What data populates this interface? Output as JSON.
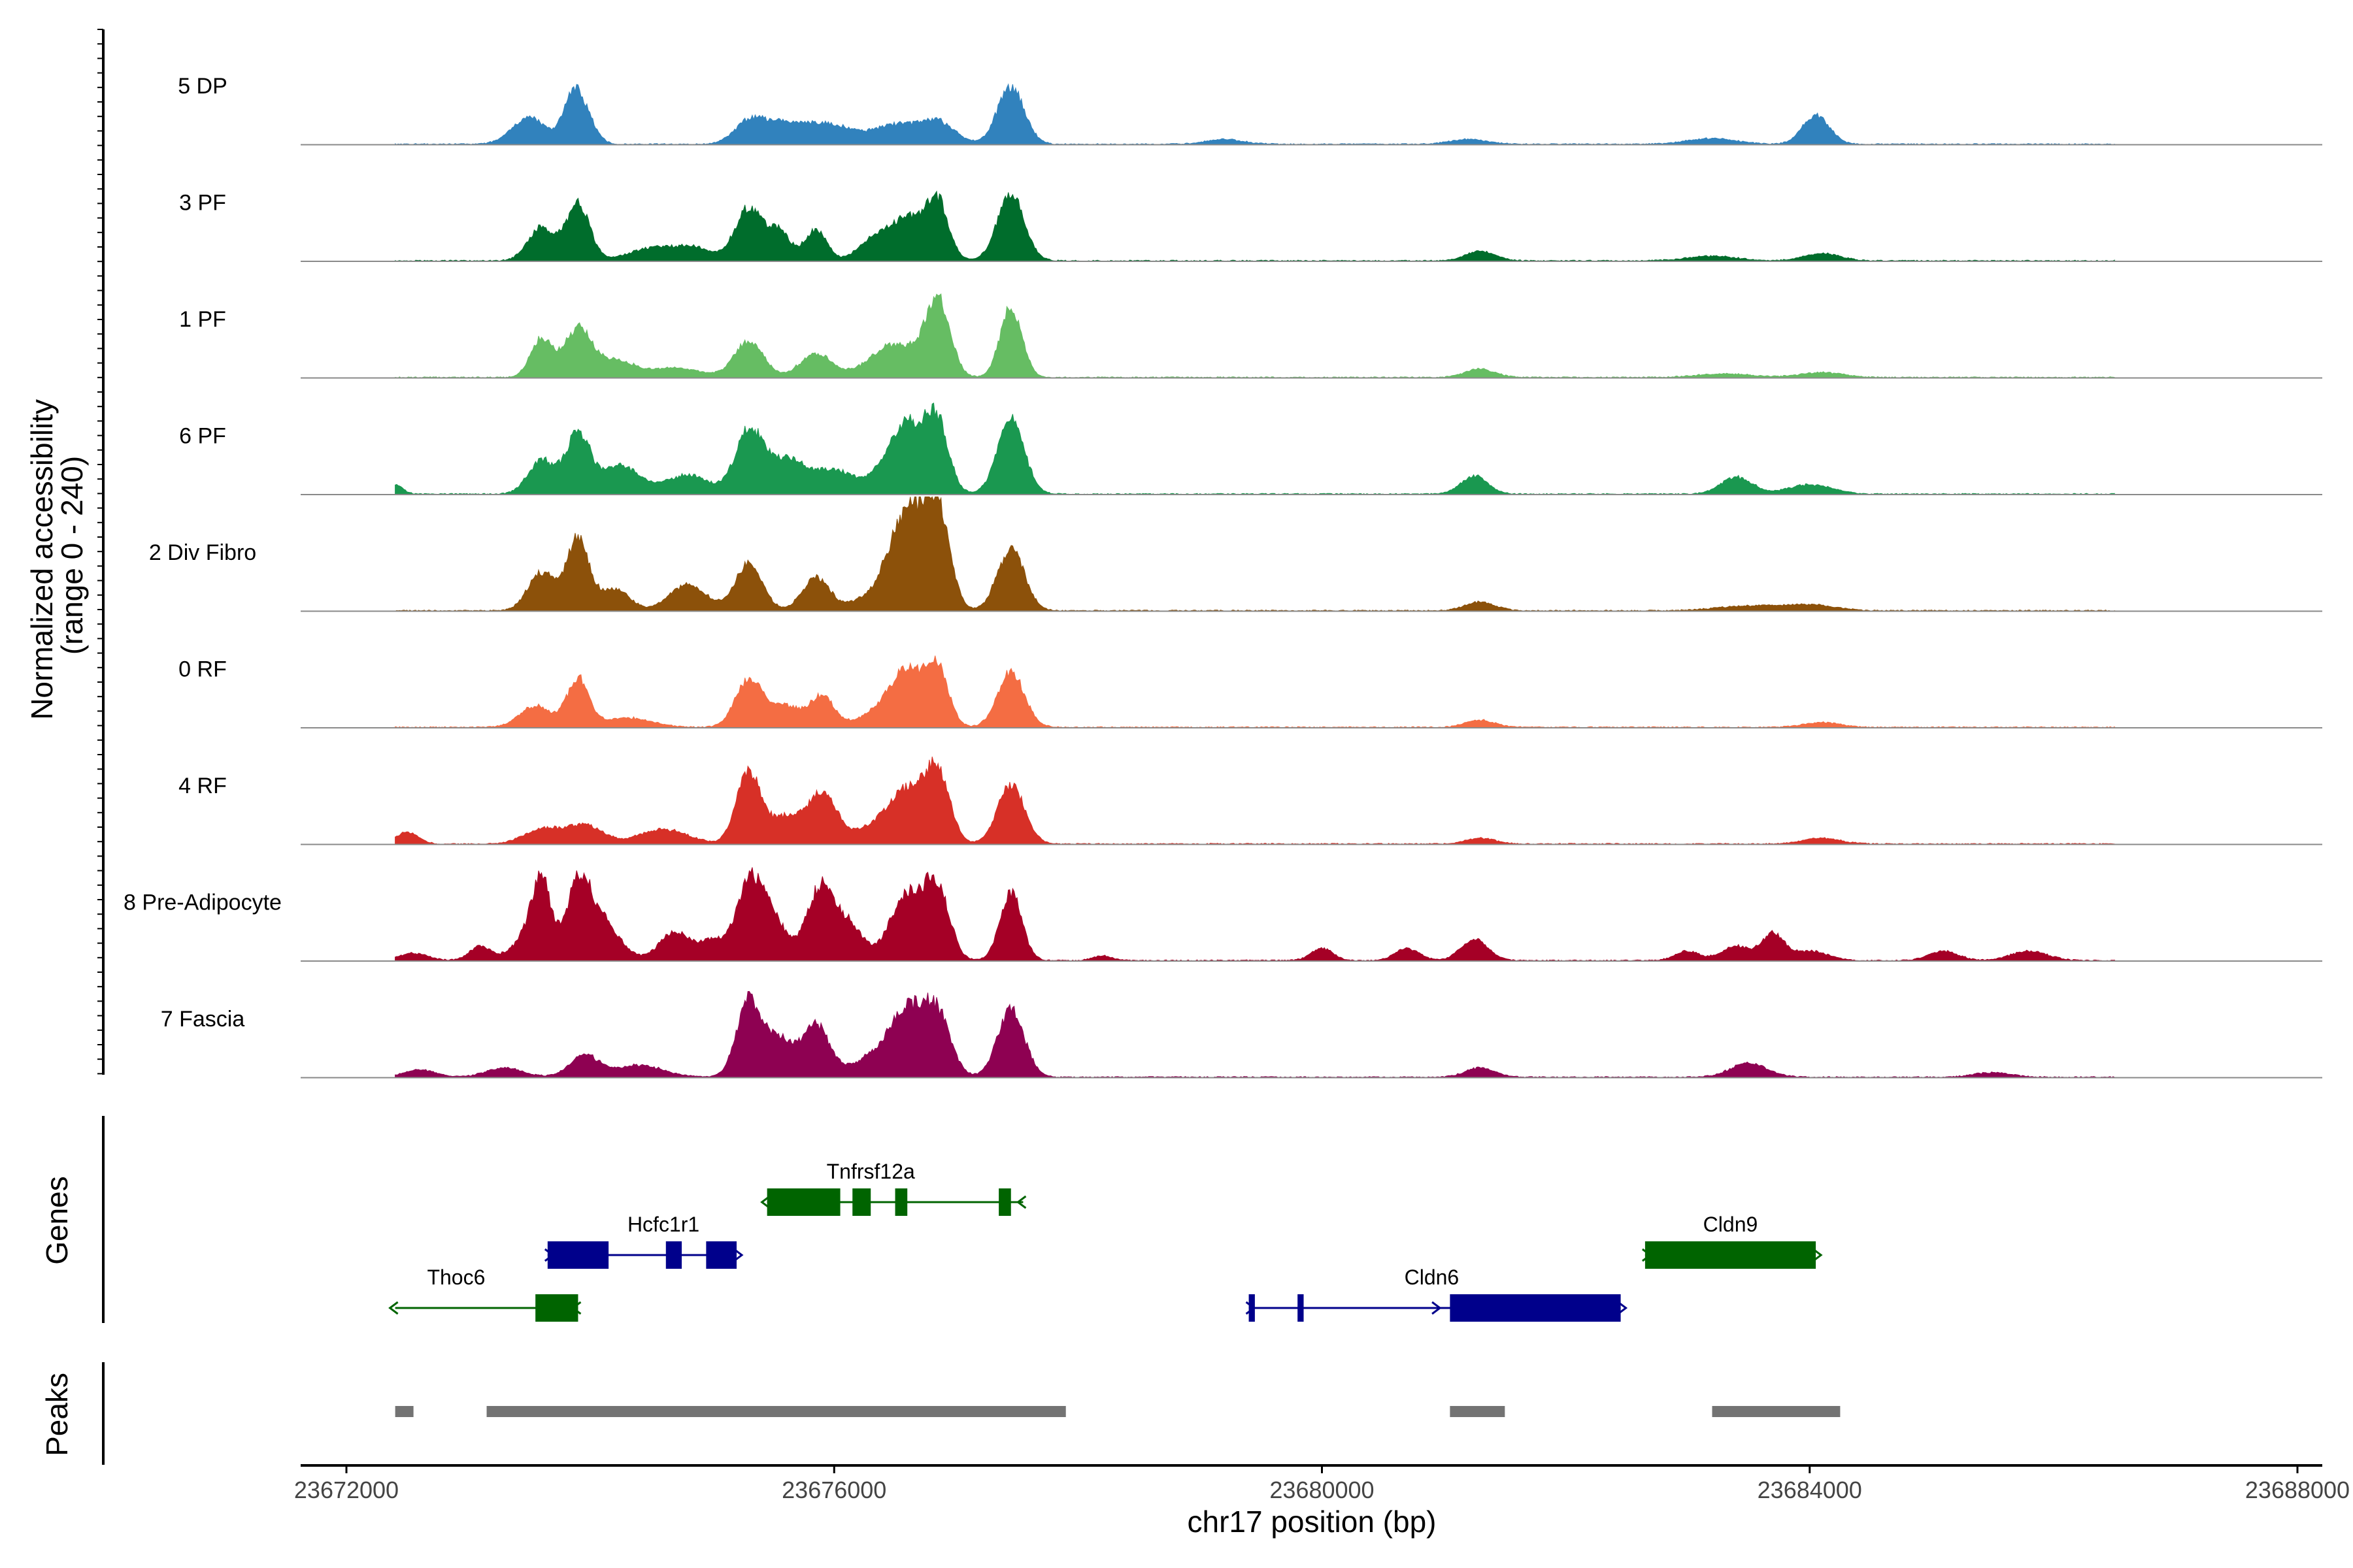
{
  "chart_data": {
    "type": "area",
    "subtype": "genome-coverage-tracks",
    "ylabel_line1": "Normalized accessibility",
    "ylabel_line2": "(range 0 - 240)",
    "y_range": [
      0,
      240
    ],
    "xlabel": "chr17 position (bp)",
    "x_range": [
      23672000,
      23688000
    ],
    "x_ticks": [
      23672000,
      23676000,
      23680000,
      23684000,
      23688000
    ],
    "x_tick_labels": [
      "23672000",
      "23676000",
      "23680000",
      "23684000",
      "23688000"
    ],
    "region_start": 23672400,
    "region_end": 23686500,
    "tracks": [
      {
        "name": "5 DP",
        "color": "#3182bd",
        "peaks": [
          [
            23673500,
            55,
            140
          ],
          [
            23673850,
            80,
            80
          ],
          [
            23673950,
            55,
            90
          ],
          [
            23675300,
            40,
            120
          ],
          [
            23675600,
            45,
            200
          ],
          [
            23676000,
            35,
            180
          ],
          [
            23676500,
            40,
            180
          ],
          [
            23676850,
            45,
            140
          ],
          [
            23677450,
            120,
            110
          ],
          [
            23679200,
            10,
            150
          ],
          [
            23681200,
            10,
            150
          ],
          [
            23683200,
            12,
            200
          ],
          [
            23684050,
            60,
            110
          ]
        ]
      },
      {
        "name": "3 PF",
        "color": "#006d2c",
        "peaks": [
          [
            23673600,
            70,
            110
          ],
          [
            23673900,
            120,
            95
          ],
          [
            23674500,
            25,
            200
          ],
          [
            23674850,
            25,
            160
          ],
          [
            23675300,
            110,
            110
          ],
          [
            23675550,
            60,
            90
          ],
          [
            23675850,
            65,
            90
          ],
          [
            23676300,
            35,
            120
          ],
          [
            23676600,
            90,
            160
          ],
          [
            23676850,
            110,
            90
          ],
          [
            23677450,
            140,
            110
          ],
          [
            23681300,
            20,
            120
          ],
          [
            23683200,
            10,
            200
          ],
          [
            23684100,
            15,
            150
          ]
        ]
      },
      {
        "name": "1 PF",
        "color": "#66bd63",
        "peaks": [
          [
            23673600,
            80,
            90
          ],
          [
            23673900,
            100,
            110
          ],
          [
            23674200,
            35,
            160
          ],
          [
            23674700,
            20,
            200
          ],
          [
            23675300,
            75,
            120
          ],
          [
            23675850,
            50,
            130
          ],
          [
            23676500,
            70,
            200
          ],
          [
            23676850,
            155,
            100
          ],
          [
            23677450,
            145,
            90
          ],
          [
            23681300,
            18,
            120
          ],
          [
            23683300,
            8,
            220
          ],
          [
            23684100,
            10,
            180
          ]
        ]
      },
      {
        "name": "6 PF",
        "color": "#1a9850",
        "peaks": [
          [
            23672400,
            20,
            60
          ],
          [
            23673600,
            70,
            110
          ],
          [
            23673900,
            125,
            100
          ],
          [
            23674250,
            60,
            150
          ],
          [
            23674800,
            40,
            180
          ],
          [
            23675300,
            130,
            110
          ],
          [
            23675600,
            70,
            150
          ],
          [
            23676000,
            50,
            180
          ],
          [
            23676600,
            150,
            170
          ],
          [
            23676850,
            120,
            90
          ],
          [
            23677450,
            155,
            110
          ],
          [
            23681250,
            38,
            110
          ],
          [
            23683400,
            35,
            130
          ],
          [
            23684000,
            20,
            180
          ]
        ]
      },
      {
        "name": "2 Div Fibro",
        "color": "#8c510a",
        "peaks": [
          [
            23673600,
            80,
            110
          ],
          [
            23673900,
            150,
            90
          ],
          [
            23674200,
            45,
            120
          ],
          [
            23674800,
            55,
            150
          ],
          [
            23675300,
            100,
            110
          ],
          [
            23675850,
            70,
            110
          ],
          [
            23676250,
            20,
            150
          ],
          [
            23676600,
            210,
            150
          ],
          [
            23676850,
            190,
            100
          ],
          [
            23677450,
            130,
            110
          ],
          [
            23681300,
            18,
            120
          ],
          [
            23683500,
            10,
            250
          ],
          [
            23684000,
            12,
            200
          ]
        ]
      },
      {
        "name": "0 RF",
        "color": "#f46d43",
        "peaks": [
          [
            23673550,
            45,
            130
          ],
          [
            23673900,
            100,
            90
          ],
          [
            23674300,
            20,
            200
          ],
          [
            23675300,
            100,
            110
          ],
          [
            23675600,
            45,
            120
          ],
          [
            23675900,
            65,
            100
          ],
          [
            23676300,
            20,
            150
          ],
          [
            23676600,
            120,
            150
          ],
          [
            23676850,
            110,
            90
          ],
          [
            23677450,
            115,
            110
          ],
          [
            23681300,
            15,
            120
          ],
          [
            23684100,
            10,
            150
          ]
        ]
      },
      {
        "name": "4 RF",
        "color": "#d73027",
        "peaks": [
          [
            23672500,
            25,
            90
          ],
          [
            23673600,
            30,
            150
          ],
          [
            23673950,
            40,
            150
          ],
          [
            23674600,
            30,
            200
          ],
          [
            23675300,
            150,
            100
          ],
          [
            23675600,
            55,
            120
          ],
          [
            23675900,
            110,
            120
          ],
          [
            23676300,
            30,
            150
          ],
          [
            23676600,
            110,
            150
          ],
          [
            23676850,
            140,
            100
          ],
          [
            23677450,
            125,
            110
          ],
          [
            23681300,
            12,
            120
          ],
          [
            23684100,
            12,
            150
          ]
        ]
      },
      {
        "name": "8 Pre-Adipocyte",
        "color": "#a50026",
        "peaks": [
          [
            23672550,
            15,
            120
          ],
          [
            23673100,
            30,
            90
          ],
          [
            23673450,
            40,
            110
          ],
          [
            23673600,
            160,
            80
          ],
          [
            23673900,
            150,
            100
          ],
          [
            23674100,
            80,
            140
          ],
          [
            23674700,
            60,
            130
          ],
          [
            23675000,
            40,
            90
          ],
          [
            23675300,
            160,
            110
          ],
          [
            23675500,
            80,
            110
          ],
          [
            23675900,
            160,
            120
          ],
          [
            23676150,
            60,
            100
          ],
          [
            23676600,
            140,
            140
          ],
          [
            23676850,
            140,
            100
          ],
          [
            23677450,
            140,
            90
          ],
          [
            23678200,
            10,
            80
          ],
          [
            23680000,
            25,
            90
          ],
          [
            23680700,
            25,
            100
          ],
          [
            23681250,
            45,
            110
          ],
          [
            23683000,
            20,
            100
          ],
          [
            23683400,
            30,
            120
          ],
          [
            23683700,
            55,
            90
          ],
          [
            23684000,
            20,
            150
          ],
          [
            23685100,
            20,
            120
          ],
          [
            23685800,
            20,
            150
          ]
        ]
      },
      {
        "name": "7 Fascia",
        "color": "#8e0152",
        "peaks": [
          [
            23672600,
            15,
            130
          ],
          [
            23673300,
            20,
            150
          ],
          [
            23673950,
            45,
            120
          ],
          [
            23674400,
            25,
            200
          ],
          [
            23675300,
            160,
            100
          ],
          [
            23675550,
            80,
            110
          ],
          [
            23675850,
            110,
            110
          ],
          [
            23676250,
            30,
            150
          ],
          [
            23676600,
            140,
            160
          ],
          [
            23676850,
            110,
            110
          ],
          [
            23677450,
            140,
            110
          ],
          [
            23681300,
            20,
            120
          ],
          [
            23683500,
            30,
            150
          ],
          [
            23685500,
            10,
            150
          ]
        ]
      }
    ],
    "genes_title": "Genes",
    "genes": [
      {
        "name": "Hcfc1r1",
        "row": 1,
        "strand": "+",
        "color": "#00008b",
        "start": 23673650,
        "end": 23675200,
        "exons": [
          [
            23673650,
            23674150
          ],
          [
            23674620,
            23674750
          ],
          [
            23674950,
            23675200
          ]
        ]
      },
      {
        "name": "Tnfrsf12a",
        "row": 0,
        "strand": "-",
        "color": "#006400",
        "start": 23675450,
        "end": 23677550,
        "exons": [
          [
            23675450,
            23676050
          ],
          [
            23676150,
            23676300
          ],
          [
            23676500,
            23676600
          ],
          [
            23677350,
            23677450
          ]
        ]
      },
      {
        "name": "Thoc6",
        "row": 2,
        "strand": "-",
        "color": "#006400",
        "start": 23672400,
        "end": 23673900,
        "exons": [
          [
            23673550,
            23673900
          ]
        ]
      },
      {
        "name": "Cldn6",
        "row": 2,
        "strand": "+",
        "color": "#00008b",
        "start": 23679400,
        "end": 23682450,
        "exons": [
          [
            23679400,
            23679450
          ],
          [
            23679800,
            23679850
          ],
          [
            23681050,
            23682450
          ]
        ]
      },
      {
        "name": "Cldn9",
        "row": 1,
        "strand": "+",
        "color": "#006400",
        "start": 23682650,
        "end": 23684050,
        "exons": [
          [
            23682650,
            23684050
          ]
        ]
      }
    ],
    "peaks_title": "Peaks",
    "peak_regions": [
      [
        23672400,
        23672550
      ],
      [
        23673150,
        23677900
      ],
      [
        23681050,
        23681500
      ],
      [
        23683200,
        23684250
      ]
    ]
  }
}
